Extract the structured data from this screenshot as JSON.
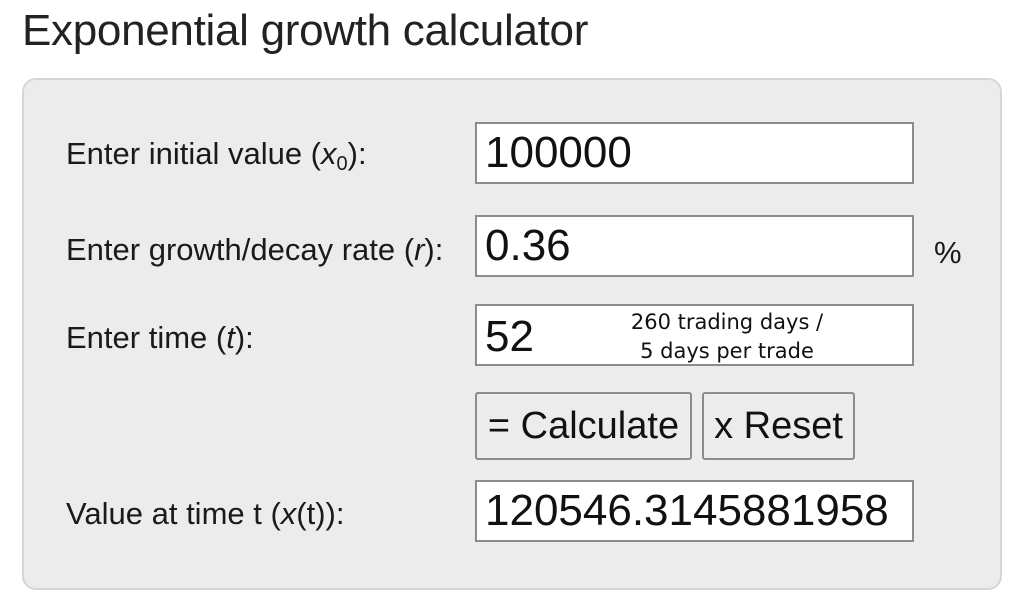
{
  "page": {
    "title": "Exponential growth calculator"
  },
  "form": {
    "initial_value_label_text": "Enter initial value (",
    "initial_value_label_var": "x",
    "initial_value_label_sub": "0",
    "initial_value_label_end": "):",
    "initial_value": "100000",
    "rate_label_text": "Enter growth/decay rate (",
    "rate_label_var": "r",
    "rate_label_end": "):",
    "rate_value": "0.36",
    "rate_unit": "%",
    "time_label_text": "Enter time (",
    "time_label_var": "t",
    "time_label_end": "):",
    "time_value": "52",
    "time_note_line1": "260 trading days /",
    "time_note_line2": "5 days per trade",
    "calculate_button": "= Calculate",
    "reset_button": "x Reset",
    "result_label_text": "Value at time t (",
    "result_label_var": "x",
    "result_label_end": "(t)):",
    "result_value": "120546.3145881958"
  }
}
